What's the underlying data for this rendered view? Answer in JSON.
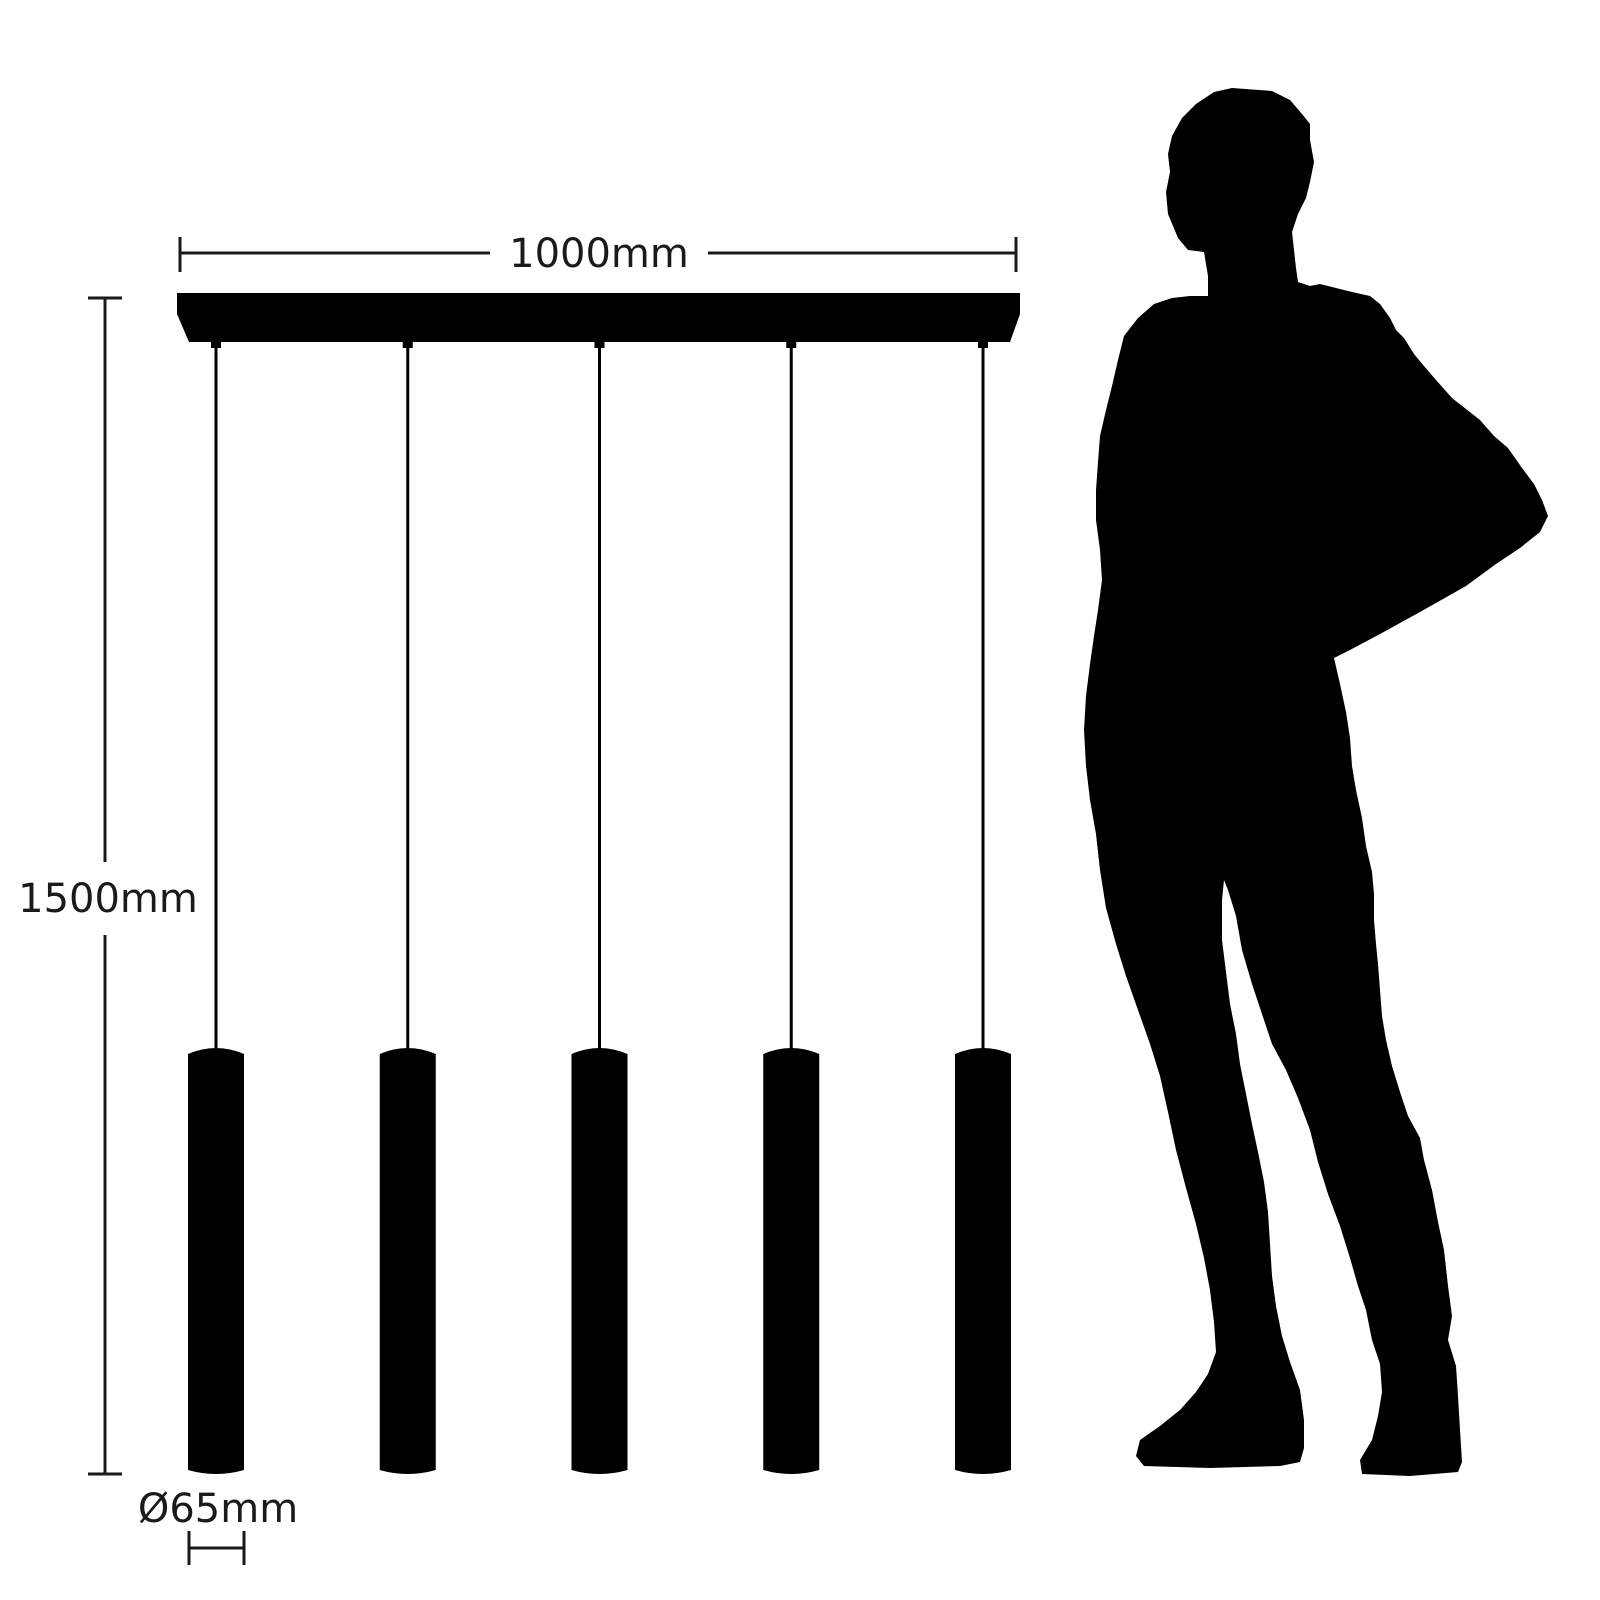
{
  "dimensions": {
    "width_label": "1000mm",
    "height_label": "1500mm",
    "diameter_label": "Ø65mm"
  },
  "product": {
    "pendant_count": 5
  },
  "colors": {
    "ink": "#000000",
    "line": "#1a1a1a",
    "background": "#ffffff"
  }
}
